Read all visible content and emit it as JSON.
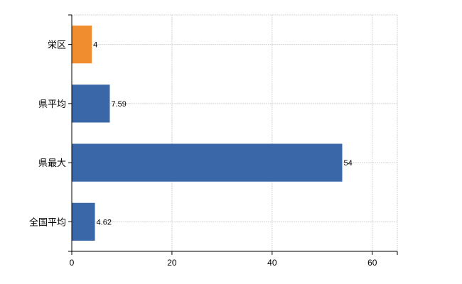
{
  "chart_data": {
    "type": "bar",
    "orientation": "horizontal",
    "title": "",
    "xlabel": "",
    "ylabel": "",
    "categories": [
      "栄区",
      "県平均",
      "県最大",
      "全国平均"
    ],
    "values": [
      4,
      7.59,
      54,
      4.62
    ],
    "data_labels": [
      "4",
      "7.59",
      "54",
      "4.62"
    ],
    "xlim": [
      0,
      65
    ],
    "x_ticks": [
      0,
      20,
      40,
      60
    ],
    "x_tick_labels": [
      "0",
      "20",
      "40",
      "60"
    ],
    "grid": true,
    "legend": "none",
    "colors": {
      "highlight": "#ef8d2f",
      "default": "#3a67a8"
    },
    "highlight_index": 0
  }
}
